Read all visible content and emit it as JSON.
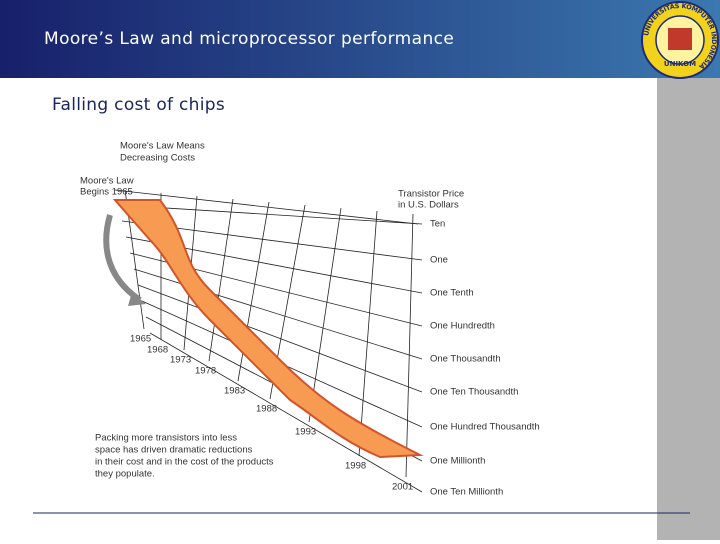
{
  "header": {
    "title": "Moore’s Law and microprocessor performance"
  },
  "subtitle": "Falling cost of chips",
  "figure": {
    "title": [
      "Moore's Law Means",
      "Decreasing Costs"
    ],
    "start_label": [
      "Moore's Law",
      "Begins 1965"
    ],
    "axis_title": [
      "Transistor Price",
      "in U.S. Dollars"
    ],
    "prices": [
      "Ten",
      "One",
      "One Tenth",
      "One Hundredth",
      "One Thousandth",
      "One Ten Thousandth",
      "One Hundred Thousandth",
      "One Millionth",
      "One Ten Millionth"
    ],
    "years": [
      "1965",
      "1968",
      "1973",
      "1978",
      "1983",
      "1988",
      "1993",
      "1998",
      "2001"
    ],
    "caption": [
      "Packing more transistors into less",
      "space has driven dramatic reductions",
      "in their cost and in the cost of the products",
      "they populate."
    ]
  },
  "logo": {
    "ring": "UNIVERSITAS KOMPUTER INDONESIA",
    "name": "UNIKOM"
  }
}
